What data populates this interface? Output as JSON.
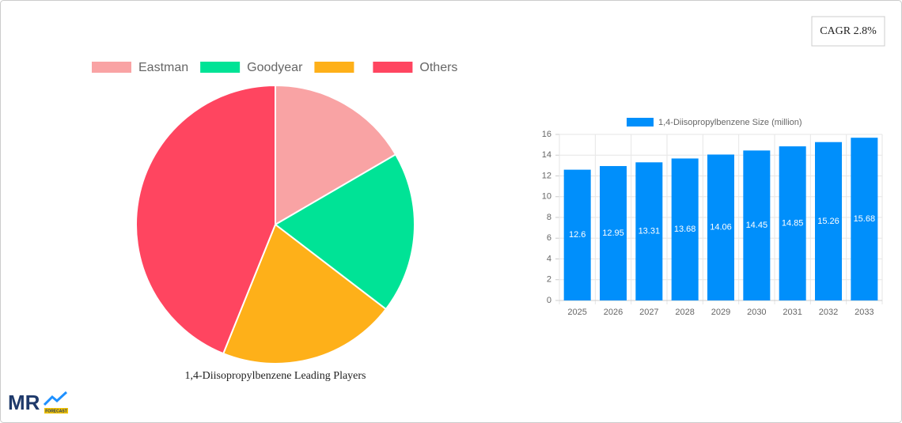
{
  "badge": "CAGR 2.8%",
  "logo": {
    "text": "MR",
    "sub": "FORECAST"
  },
  "chart_data": [
    {
      "type": "pie",
      "title": "1,4-Diisopropylbenzene Leading Players",
      "categories": [
        "Eastman",
        "Goodyear",
        null,
        "Others"
      ],
      "values": [
        16.6,
        18.8,
        20.7,
        43.9
      ],
      "colors": [
        "#f9a3a4",
        "#00e396",
        "#feb019",
        "#ff4560"
      ]
    },
    {
      "type": "bar",
      "series": [
        {
          "name": "1,4-Diisopropylbenzene Size (million)",
          "color": "#008ffb",
          "values": [
            12.6,
            12.95,
            13.31,
            13.68,
            14.06,
            14.45,
            14.85,
            15.26,
            15.68
          ]
        }
      ],
      "categories": [
        "2025",
        "2026",
        "2027",
        "2028",
        "2029",
        "2030",
        "2031",
        "2032",
        "2033"
      ],
      "ylim": [
        0,
        16
      ],
      "yticks": [
        0,
        2,
        4,
        6,
        8,
        10,
        12,
        14,
        16
      ],
      "grid": true
    }
  ]
}
